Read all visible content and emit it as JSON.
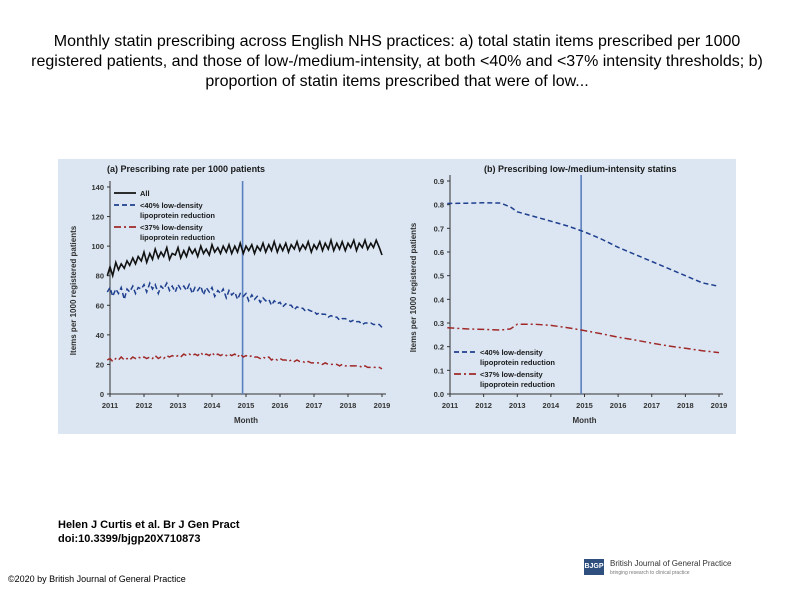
{
  "slide": {
    "title": "Monthly statin prescribing across English NHS practices: a) total statin items prescribed per 1000 registered patients, and those of low-/medium-intensity, at both <40% and <37% intensity thresholds; b) proportion of statin items prescribed that were of low...",
    "citation_line1": "Helen J Curtis et al. Br J Gen Pract",
    "citation_line2": "doi:10.3399/bjgp20X710873",
    "copyright": "©2020 by British Journal of General Practice",
    "journal_name": "British Journal of General Practice",
    "journal_abbrev": "BJGP",
    "journal_tagline": "bringing research to clinical practice"
  },
  "colors": {
    "background": "#dbe6f2",
    "all": "#111111",
    "low40": "#1f3f8f",
    "low37": "#a02828",
    "marker": "#5b80bf"
  },
  "chart_data": [
    {
      "type": "line",
      "title": "(a) Prescribing rate per 1000 patients",
      "xlabel": "Month",
      "ylabel": "Items per 1000 registered patients",
      "ylim": [
        0,
        140
      ],
      "yticks": [
        0,
        20,
        40,
        60,
        80,
        100,
        120,
        140
      ],
      "xlim": [
        2011,
        2019
      ],
      "xticks": [
        "2011",
        "2012",
        "2013",
        "2014",
        "2015",
        "2016",
        "2017",
        "2018",
        "2019"
      ],
      "vline_x": 2014.9,
      "legend": "top-left",
      "series": [
        {
          "name": "All",
          "style": "solid",
          "x": [
            2010.92,
            2011.0,
            2011.08,
            2011.17,
            2011.25,
            2011.33,
            2011.42,
            2011.5,
            2011.58,
            2011.67,
            2011.75,
            2011.83,
            2011.92,
            2012.0,
            2012.08,
            2012.17,
            2012.25,
            2012.33,
            2012.42,
            2012.5,
            2012.58,
            2012.67,
            2012.75,
            2012.83,
            2012.92,
            2013.0,
            2013.08,
            2013.17,
            2013.25,
            2013.33,
            2013.42,
            2013.5,
            2013.58,
            2013.67,
            2013.75,
            2013.83,
            2013.92,
            2014.0,
            2014.08,
            2014.17,
            2014.25,
            2014.33,
            2014.42,
            2014.5,
            2014.58,
            2014.67,
            2014.75,
            2014.83,
            2014.92,
            2015.0,
            2015.08,
            2015.17,
            2015.25,
            2015.33,
            2015.42,
            2015.5,
            2015.58,
            2015.67,
            2015.75,
            2015.83,
            2015.92,
            2016.0,
            2016.08,
            2016.17,
            2016.25,
            2016.33,
            2016.42,
            2016.5,
            2016.58,
            2016.67,
            2016.75,
            2016.83,
            2016.92,
            2017.0,
            2017.08,
            2017.17,
            2017.25,
            2017.33,
            2017.42,
            2017.5,
            2017.58,
            2017.67,
            2017.75,
            2017.83,
            2017.92,
            2018.0,
            2018.08,
            2018.17,
            2018.25,
            2018.33,
            2018.42,
            2018.5,
            2018.58,
            2018.67,
            2018.75,
            2018.83,
            2018.92,
            2019.0
          ],
          "values": [
            80,
            86,
            80,
            89,
            84,
            88,
            85,
            90,
            87,
            92,
            88,
            93,
            90,
            96,
            89,
            95,
            91,
            98,
            92,
            96,
            93,
            99,
            91,
            95,
            94,
            99,
            92,
            97,
            93,
            99,
            95,
            98,
            93,
            100,
            95,
            98,
            94,
            101,
            96,
            99,
            95,
            100,
            96,
            101,
            95,
            100,
            96,
            102,
            95,
            100,
            97,
            101,
            95,
            100,
            97,
            102,
            96,
            101,
            97,
            103,
            96,
            101,
            97,
            102,
            96,
            101,
            98,
            103,
            97,
            101,
            98,
            103,
            96,
            101,
            98,
            103,
            97,
            102,
            98,
            104,
            97,
            102,
            98,
            103,
            97,
            102,
            99,
            104,
            97,
            102,
            99,
            104,
            98,
            102,
            99,
            104,
            99,
            94
          ]
        },
        {
          "name": "<40% low-density lipoprotein reduction",
          "style": "dashed",
          "x": [
            2010.92,
            2011.0,
            2011.08,
            2011.17,
            2011.25,
            2011.33,
            2011.42,
            2011.5,
            2011.58,
            2011.67,
            2011.75,
            2011.83,
            2011.92,
            2012.0,
            2012.08,
            2012.17,
            2012.25,
            2012.33,
            2012.42,
            2012.5,
            2012.58,
            2012.67,
            2012.75,
            2012.83,
            2012.92,
            2013.0,
            2013.08,
            2013.17,
            2013.25,
            2013.33,
            2013.42,
            2013.5,
            2013.58,
            2013.67,
            2013.75,
            2013.83,
            2013.92,
            2014.0,
            2014.08,
            2014.17,
            2014.25,
            2014.33,
            2014.42,
            2014.5,
            2014.58,
            2014.67,
            2014.75,
            2014.83,
            2014.92,
            2015.0,
            2015.08,
            2015.17,
            2015.25,
            2015.33,
            2015.42,
            2015.5,
            2015.58,
            2015.67,
            2015.75,
            2015.83,
            2015.92,
            2016.0,
            2016.08,
            2016.17,
            2016.25,
            2016.33,
            2016.42,
            2016.5,
            2016.58,
            2016.67,
            2016.75,
            2016.83,
            2016.92,
            2017.0,
            2017.08,
            2017.17,
            2017.25,
            2017.33,
            2017.42,
            2017.5,
            2017.58,
            2017.67,
            2017.75,
            2017.83,
            2017.92,
            2018.0,
            2018.08,
            2018.17,
            2018.25,
            2018.33,
            2018.42,
            2018.5,
            2018.58,
            2018.67,
            2018.75,
            2018.83,
            2018.92,
            2019.0
          ],
          "values": [
            69,
            72,
            66,
            71,
            68,
            72,
            64,
            71,
            69,
            73,
            68,
            72,
            71,
            74,
            69,
            75,
            71,
            74,
            68,
            73,
            71,
            75,
            70,
            73,
            69,
            74,
            71,
            73,
            70,
            74,
            68,
            72,
            70,
            73,
            67,
            72,
            69,
            72,
            66,
            70,
            68,
            71,
            65,
            70,
            67,
            69,
            64,
            68,
            66,
            68,
            63,
            67,
            64,
            66,
            62,
            65,
            63,
            64,
            60,
            63,
            61,
            62,
            59,
            61,
            60,
            60,
            57,
            59,
            58,
            58,
            56,
            57,
            56,
            56,
            54,
            55,
            54,
            54,
            52,
            53,
            52,
            52,
            50,
            51,
            51,
            50,
            49,
            50,
            49,
            49,
            47,
            48,
            48,
            48,
            47,
            47,
            47,
            45
          ]
        },
        {
          "name": "<37% low-density lipoprotein reduction",
          "style": "dashdot",
          "x": [
            2010.92,
            2011.0,
            2011.08,
            2011.17,
            2011.25,
            2011.33,
            2011.42,
            2011.5,
            2011.58,
            2011.67,
            2011.75,
            2011.83,
            2011.92,
            2012.0,
            2012.08,
            2012.17,
            2012.25,
            2012.33,
            2012.42,
            2012.5,
            2012.58,
            2012.67,
            2012.75,
            2012.83,
            2012.92,
            2013.0,
            2013.08,
            2013.17,
            2013.25,
            2013.33,
            2013.42,
            2013.5,
            2013.58,
            2013.67,
            2013.75,
            2013.83,
            2013.92,
            2014.0,
            2014.08,
            2014.17,
            2014.25,
            2014.33,
            2014.42,
            2014.5,
            2014.58,
            2014.67,
            2014.75,
            2014.83,
            2014.92,
            2015.0,
            2015.08,
            2015.17,
            2015.25,
            2015.33,
            2015.42,
            2015.5,
            2015.58,
            2015.67,
            2015.75,
            2015.83,
            2015.92,
            2016.0,
            2016.08,
            2016.17,
            2016.25,
            2016.33,
            2016.42,
            2016.5,
            2016.58,
            2016.67,
            2016.75,
            2016.83,
            2016.92,
            2017.0,
            2017.08,
            2017.17,
            2017.25,
            2017.33,
            2017.42,
            2017.5,
            2017.58,
            2017.67,
            2017.75,
            2017.83,
            2017.92,
            2018.0,
            2018.08,
            2018.17,
            2018.25,
            2018.33,
            2018.42,
            2018.5,
            2018.58,
            2018.67,
            2018.75,
            2018.83,
            2018.92,
            2019.0
          ],
          "values": [
            23,
            24,
            22,
            24,
            23,
            25,
            23,
            24,
            23,
            25,
            24,
            25,
            24,
            25,
            24,
            25,
            24,
            26,
            24,
            25,
            24,
            26,
            25,
            26,
            25,
            26,
            25,
            27,
            26,
            27,
            26,
            27,
            26,
            28,
            26,
            27,
            26,
            28,
            26,
            27,
            26,
            27,
            26,
            27,
            26,
            27,
            25,
            27,
            25,
            26,
            25,
            26,
            25,
            25,
            24,
            25,
            24,
            25,
            23,
            24,
            23,
            24,
            23,
            23,
            22,
            23,
            22,
            23,
            22,
            22,
            21,
            22,
            21,
            21,
            21,
            21,
            20,
            21,
            20,
            20,
            20,
            20,
            19,
            20,
            19,
            19,
            19,
            19,
            19,
            19,
            18,
            19,
            18,
            18,
            18,
            18,
            18,
            17
          ]
        }
      ]
    },
    {
      "type": "line",
      "title": "(b) Prescribing low-/medium-intensity statins",
      "xlabel": "Month",
      "ylabel": "Items per 1000 registered patients",
      "ylim": [
        0,
        0.9
      ],
      "yticks": [
        "0.0",
        "0.1",
        "0.2",
        "0.3",
        "0.4",
        "0.5",
        "0.6",
        "0.7",
        "0.8",
        "0.9"
      ],
      "xlim": [
        2011,
        2019
      ],
      "xticks": [
        "2011",
        "2012",
        "2013",
        "2014",
        "2015",
        "2016",
        "2017",
        "2018",
        "2019"
      ],
      "vline_x": 2014.9,
      "legend": "bottom-left",
      "series": [
        {
          "name": "<40% low-density lipoprotein reduction",
          "style": "dashed",
          "x": [
            2010.92,
            2011.5,
            2012.0,
            2012.5,
            2012.8,
            2013.0,
            2013.5,
            2014.0,
            2014.5,
            2015.0,
            2015.5,
            2016.0,
            2016.5,
            2017.0,
            2017.5,
            2018.0,
            2018.5,
            2019.0
          ],
          "values": [
            0.805,
            0.806,
            0.808,
            0.807,
            0.79,
            0.77,
            0.75,
            0.73,
            0.71,
            0.685,
            0.655,
            0.62,
            0.59,
            0.56,
            0.53,
            0.5,
            0.47,
            0.455
          ]
        },
        {
          "name": "<37% low-density lipoprotein reduction",
          "style": "dashdot",
          "x": [
            2010.92,
            2011.5,
            2012.0,
            2012.5,
            2012.8,
            2013.0,
            2013.5,
            2014.0,
            2014.5,
            2015.0,
            2015.5,
            2016.0,
            2016.5,
            2017.0,
            2017.5,
            2018.0,
            2018.5,
            2019.0
          ],
          "values": [
            0.28,
            0.275,
            0.273,
            0.27,
            0.275,
            0.295,
            0.295,
            0.29,
            0.28,
            0.268,
            0.255,
            0.24,
            0.228,
            0.215,
            0.203,
            0.193,
            0.183,
            0.175
          ]
        }
      ]
    }
  ]
}
